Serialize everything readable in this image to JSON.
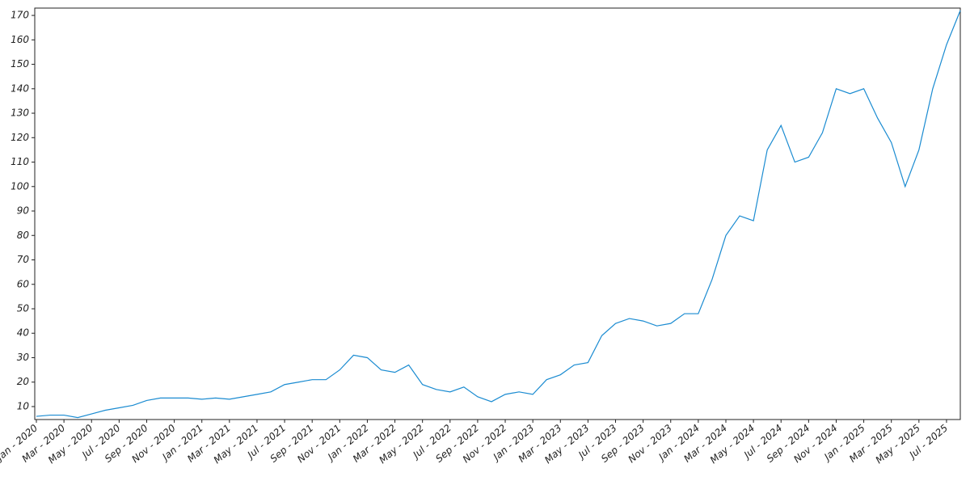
{
  "chart_data": {
    "type": "line",
    "x": [
      "2020-01",
      "2020-02",
      "2020-03",
      "2020-04",
      "2020-05",
      "2020-06",
      "2020-07",
      "2020-08",
      "2020-09",
      "2020-10",
      "2020-11",
      "2020-12",
      "2021-01",
      "2021-02",
      "2021-03",
      "2021-04",
      "2021-05",
      "2021-06",
      "2021-07",
      "2021-08",
      "2021-09",
      "2021-10",
      "2021-11",
      "2021-12",
      "2022-01",
      "2022-02",
      "2022-03",
      "2022-04",
      "2022-05",
      "2022-06",
      "2022-07",
      "2022-08",
      "2022-09",
      "2022-10",
      "2022-11",
      "2022-12",
      "2023-01",
      "2023-02",
      "2023-03",
      "2023-04",
      "2023-05",
      "2023-06",
      "2023-07",
      "2023-08",
      "2023-09",
      "2023-10",
      "2023-11",
      "2023-12",
      "2024-01",
      "2024-02",
      "2024-03",
      "2024-04",
      "2024-05",
      "2024-06",
      "2024-07",
      "2024-08",
      "2024-09",
      "2024-10",
      "2024-11",
      "2024-12",
      "2025-01",
      "2025-02",
      "2025-03",
      "2025-04",
      "2025-05",
      "2025-06",
      "2025-07",
      "2025-08"
    ],
    "series": [
      {
        "color": "#1a8bd1",
        "values": [
          6,
          6.5,
          6.5,
          5.5,
          7,
          8.5,
          9.5,
          10.5,
          12.5,
          13.5,
          13.5,
          13.5,
          13,
          13.5,
          13,
          14,
          15,
          16,
          19,
          20,
          21,
          21,
          25,
          31,
          30,
          25,
          24,
          27,
          19,
          17,
          16,
          18,
          14,
          12,
          15,
          16,
          15,
          21,
          23,
          27,
          28,
          39,
          44,
          46,
          45,
          43,
          44,
          48,
          48,
          62,
          80,
          88,
          86,
          115,
          125,
          110,
          112,
          122,
          140,
          138,
          140,
          128,
          118,
          100,
          115,
          140,
          158,
          172
        ]
      }
    ],
    "xlim": [
      "2020-01",
      "2025-08"
    ],
    "xticks": [
      {
        "value": "2020-01",
        "label": "Jan - 2020"
      },
      {
        "value": "2020-03",
        "label": "Mar - 2020"
      },
      {
        "value": "2020-05",
        "label": "May - 2020"
      },
      {
        "value": "2020-07",
        "label": "Jul - 2020"
      },
      {
        "value": "2020-09",
        "label": "Sep - 2020"
      },
      {
        "value": "2020-11",
        "label": "Nov - 2020"
      },
      {
        "value": "2021-01",
        "label": "Jan - 2021"
      },
      {
        "value": "2021-03",
        "label": "Mar - 2021"
      },
      {
        "value": "2021-05",
        "label": "May - 2021"
      },
      {
        "value": "2021-07",
        "label": "Jul - 2021"
      },
      {
        "value": "2021-09",
        "label": "Sep - 2021"
      },
      {
        "value": "2021-11",
        "label": "Nov - 2021"
      },
      {
        "value": "2022-01",
        "label": "Jan - 2022"
      },
      {
        "value": "2022-03",
        "label": "Mar - 2022"
      },
      {
        "value": "2022-05",
        "label": "May - 2022"
      },
      {
        "value": "2022-07",
        "label": "Jul - 2022"
      },
      {
        "value": "2022-09",
        "label": "Sep - 2022"
      },
      {
        "value": "2022-11",
        "label": "Nov - 2022"
      },
      {
        "value": "2023-01",
        "label": "Jan - 2023"
      },
      {
        "value": "2023-03",
        "label": "Mar - 2023"
      },
      {
        "value": "2023-05",
        "label": "May - 2023"
      },
      {
        "value": "2023-07",
        "label": "Jul - 2023"
      },
      {
        "value": "2023-09",
        "label": "Sep - 2023"
      },
      {
        "value": "2023-11",
        "label": "Nov - 2023"
      },
      {
        "value": "2024-01",
        "label": "Jan - 2024"
      },
      {
        "value": "2024-03",
        "label": "Mar - 2024"
      },
      {
        "value": "2024-05",
        "label": "May - 2024"
      },
      {
        "value": "2024-07",
        "label": "Jul - 2024"
      },
      {
        "value": "2024-09",
        "label": "Sep - 2024"
      },
      {
        "value": "2024-11",
        "label": "Nov - 2024"
      },
      {
        "value": "2025-01",
        "label": "Jan - 2025"
      },
      {
        "value": "2025-03",
        "label": "Mar - 2025"
      },
      {
        "value": "2025-05",
        "label": "May - 2025"
      },
      {
        "value": "2025-07",
        "label": "Jul - 2025"
      }
    ],
    "ylim": [
      4.7,
      173
    ],
    "yticks": [
      10,
      20,
      30,
      40,
      50,
      60,
      70,
      80,
      90,
      100,
      110,
      120,
      130,
      140,
      150,
      160,
      170
    ],
    "grid": false
  }
}
